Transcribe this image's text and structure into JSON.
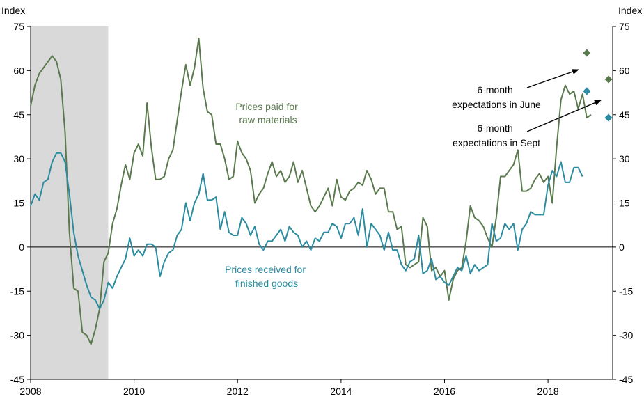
{
  "chart_data": {
    "type": "line",
    "ylim": [
      -45,
      75
    ],
    "xlim": [
      2008,
      2019.25
    ],
    "y_ticks": [
      "75",
      "60",
      "45",
      "30",
      "15",
      "0",
      "-15",
      "-30",
      "-45"
    ],
    "y_tick_values": [
      75,
      60,
      45,
      30,
      15,
      0,
      -15,
      -30,
      -45
    ],
    "x_ticks": [
      "2008",
      "2010",
      "2012",
      "2014",
      "2016",
      "2018"
    ],
    "x_tick_values": [
      2008,
      2010,
      2012,
      2014,
      2016,
      2018
    ],
    "left_axis_title": "Index",
    "right_axis_title": "Index",
    "grid": false,
    "recession": {
      "start": 2008.0,
      "end": 2009.5,
      "color": "#d9d9d9"
    },
    "series": [
      {
        "name": "Prices paid for raw materials",
        "label_lines": [
          "Prices paid for",
          "raw materials"
        ],
        "color": "#5a7a4e",
        "start_year": 2008.0,
        "step": 0.0833333,
        "values": [
          48,
          55,
          59,
          61,
          63,
          65,
          63,
          57,
          39,
          5,
          -14,
          -15,
          -29,
          -30,
          -33,
          -28,
          -21,
          -5,
          -2,
          8,
          13,
          21,
          28,
          23,
          32,
          35,
          31,
          49,
          34,
          23,
          23,
          24,
          30,
          33,
          43,
          53,
          62,
          55,
          61,
          71,
          54,
          46,
          45,
          35,
          35,
          30,
          23,
          24,
          36,
          32,
          30,
          26,
          15,
          18,
          20,
          25,
          29,
          24,
          26,
          22,
          24,
          29,
          22,
          26,
          20,
          14,
          12,
          14,
          17,
          20,
          14,
          23,
          17,
          16,
          19,
          20,
          22,
          21,
          26,
          23,
          18,
          20,
          20,
          12,
          12,
          6,
          7,
          -6,
          -7,
          -6,
          -5,
          10,
          7,
          -8,
          -7,
          -10,
          -8,
          -18,
          -11,
          -8,
          -7,
          2,
          14,
          10,
          9,
          7,
          3,
          0,
          10,
          24,
          24,
          26,
          28,
          33,
          19,
          19,
          20,
          23,
          25,
          22,
          24,
          15,
          34,
          50,
          55,
          52,
          53,
          47,
          52,
          44,
          45
        ]
      },
      {
        "name": "Prices received for finished goods",
        "label_lines": [
          "Prices received for",
          "finished goods"
        ],
        "color": "#2b8ba0",
        "start_year": 2008.0,
        "step": 0.0833333,
        "values": [
          14,
          18,
          16,
          22,
          23,
          29,
          32,
          32,
          29,
          18,
          5,
          -3,
          -8,
          -13,
          -17,
          -18,
          -21,
          -18,
          -12,
          -14,
          -10,
          -7,
          -4,
          3,
          -3,
          -1,
          -3,
          1,
          1,
          0,
          -10,
          -5,
          -2,
          -1,
          4,
          6,
          15,
          9,
          15,
          18,
          25,
          16,
          16,
          17,
          6,
          12,
          5,
          4,
          4,
          10,
          8,
          4,
          7,
          1,
          -1,
          2,
          2,
          4,
          6,
          2,
          7,
          5,
          4,
          0,
          2,
          -1,
          3,
          2,
          5,
          5,
          8,
          7,
          3,
          8,
          8,
          10,
          4,
          13,
          0,
          8,
          6,
          4,
          -1,
          5,
          -1,
          -1,
          -6,
          -8,
          -5,
          -4,
          4,
          -9,
          -8,
          -4,
          -11,
          -10,
          -12,
          -13,
          -10,
          -7,
          -8,
          -3,
          -9,
          -6,
          -8,
          -7,
          -6,
          8,
          2,
          3,
          8,
          6,
          8,
          -1,
          6,
          8,
          12,
          11,
          11,
          11,
          21,
          26,
          24,
          29,
          22,
          22,
          27,
          27,
          24
        ]
      }
    ],
    "expectations": [
      {
        "label_lines": [
          "6-month",
          "expectations in June"
        ],
        "points": [
          {
            "x": 2018.75,
            "y": 66,
            "color": "#5a7a4e"
          },
          {
            "x": 2018.75,
            "y": 53,
            "color": "#2b8ba0"
          }
        ]
      },
      {
        "label_lines": [
          "6-month",
          "expectations in Sept"
        ],
        "points": [
          {
            "x": 2019.17,
            "y": 57,
            "color": "#5a7a4e"
          },
          {
            "x": 2019.17,
            "y": 44,
            "color": "#2b8ba0"
          }
        ]
      }
    ]
  }
}
